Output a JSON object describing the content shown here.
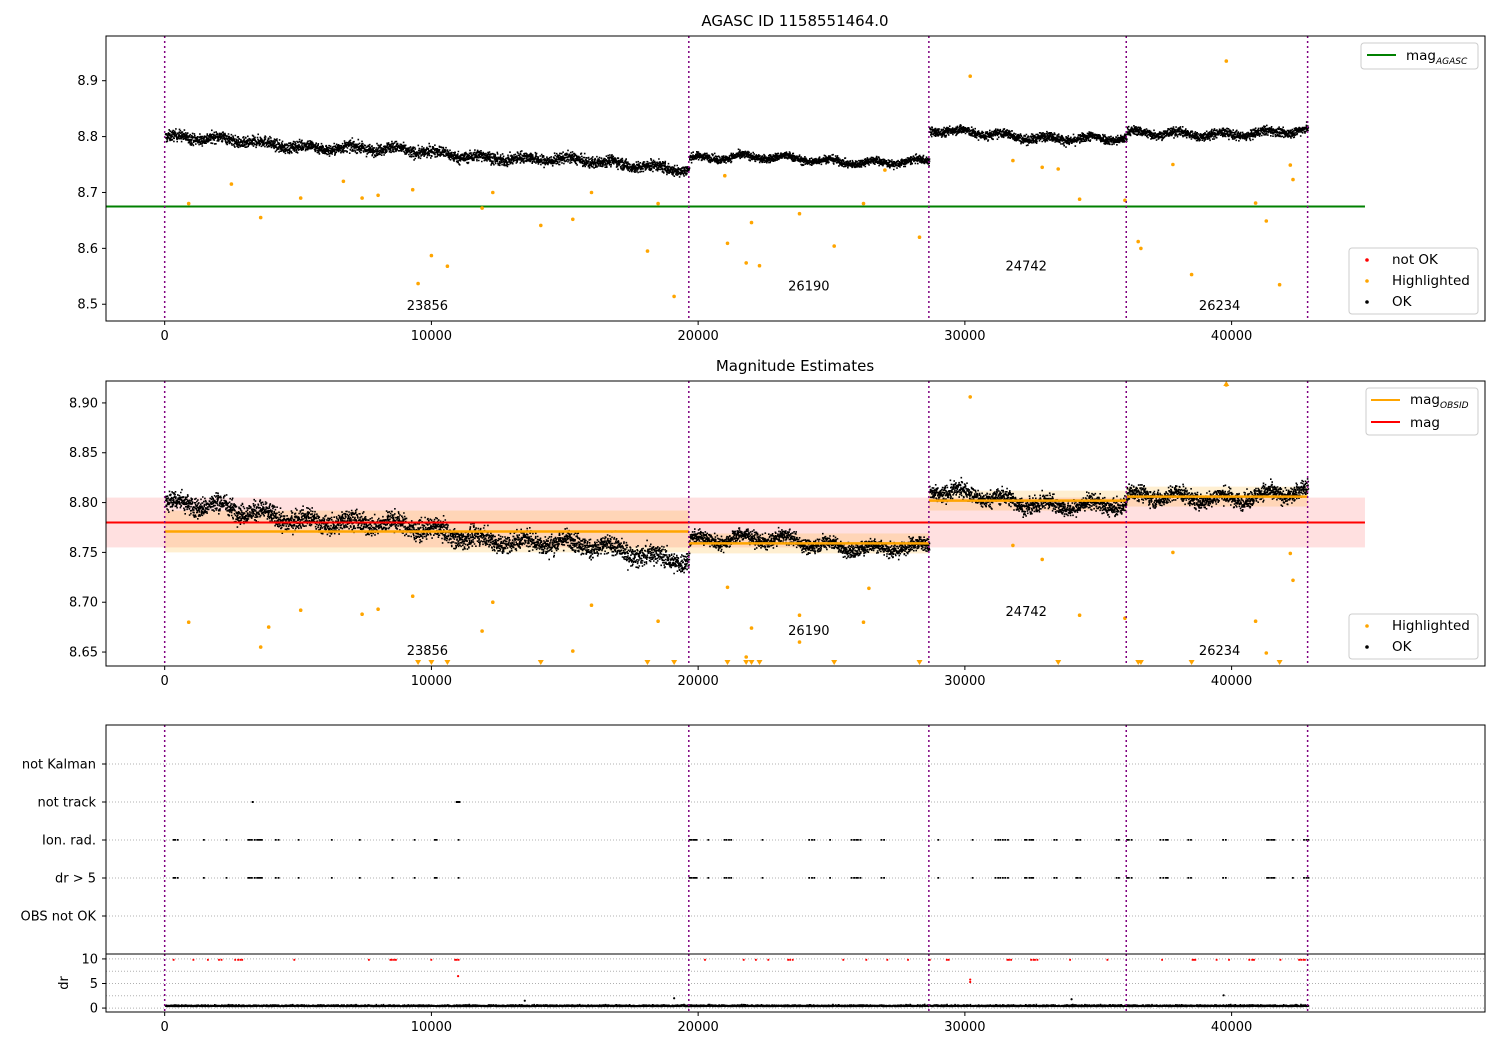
{
  "chart_data": [
    {
      "type": "scatter",
      "title": "AGASC ID 1158551464.0",
      "xlim": [
        -2200,
        49500
      ],
      "ylim": [
        8.47,
        8.98
      ],
      "xticks": [
        0,
        10000,
        20000,
        30000,
        40000
      ],
      "xtick_labels": [
        "0",
        "10000",
        "20000",
        "30000",
        "40000"
      ],
      "yticks": [
        8.5,
        8.6,
        8.7,
        8.8,
        8.9
      ],
      "ytick_labels": [
        "8.5",
        "8.6",
        "8.7",
        "8.8",
        "8.9"
      ],
      "obs_boundaries": [
        0,
        19650,
        28650,
        36050,
        42850
      ],
      "obsids": [
        {
          "label": "23856",
          "x": 9850,
          "y": 8.49
        },
        {
          "label": "26190",
          "x": 24150,
          "y": 8.525
        },
        {
          "label": "24742",
          "x": 32300,
          "y": 8.56
        },
        {
          "label": "26234",
          "x": 39550,
          "y": 8.49
        }
      ],
      "mag_agasc": {
        "value": 8.675,
        "x_range": [
          -2200,
          45000
        ],
        "color": "#008000"
      },
      "ok_segments": [
        {
          "x": [
            0,
            19650
          ],
          "y_start": 8.8,
          "y_end": 8.745,
          "spread": 0.017
        },
        {
          "x": [
            19650,
            28650
          ],
          "y_start": 8.765,
          "y_end": 8.755,
          "spread": 0.012
        },
        {
          "x": [
            28650,
            36050
          ],
          "y_start": 8.81,
          "y_end": 8.795,
          "spread": 0.014
        },
        {
          "x": [
            36050,
            42850
          ],
          "y_start": 8.805,
          "y_end": 8.81,
          "spread": 0.014
        }
      ],
      "highlighted_points": [
        [
          900,
          8.68
        ],
        [
          3600,
          8.655
        ],
        [
          5100,
          8.69
        ],
        [
          7400,
          8.69
        ],
        [
          8000,
          8.695
        ],
        [
          9300,
          8.705
        ],
        [
          9500,
          8.537
        ],
        [
          10000,
          8.587
        ],
        [
          10600,
          8.568
        ],
        [
          11900,
          8.672
        ],
        [
          12300,
          8.7
        ],
        [
          14100,
          8.641
        ],
        [
          15300,
          8.652
        ],
        [
          16000,
          8.7
        ],
        [
          18100,
          8.595
        ],
        [
          18500,
          8.68
        ],
        [
          19100,
          8.514
        ],
        [
          21100,
          8.609
        ],
        [
          21800,
          8.574
        ],
        [
          22000,
          8.646
        ],
        [
          22300,
          8.569
        ],
        [
          23800,
          8.662
        ],
        [
          25100,
          8.604
        ],
        [
          26200,
          8.68
        ],
        [
          28300,
          8.62
        ],
        [
          30200,
          8.908
        ],
        [
          32900,
          8.745
        ],
        [
          33500,
          8.742
        ],
        [
          34300,
          8.688
        ],
        [
          36000,
          8.686
        ],
        [
          36500,
          8.612
        ],
        [
          36600,
          8.6
        ],
        [
          38500,
          8.553
        ],
        [
          39800,
          8.935
        ],
        [
          40900,
          8.681
        ],
        [
          41300,
          8.649
        ],
        [
          41800,
          8.535
        ],
        [
          42300,
          8.723
        ],
        [
          42200,
          8.749
        ],
        [
          37800,
          8.75
        ],
        [
          31800,
          8.757
        ],
        [
          27000,
          8.74
        ],
        [
          21000,
          8.73
        ],
        [
          6700,
          8.72
        ],
        [
          2500,
          8.715
        ]
      ],
      "legend_upper": {
        "entries": [
          {
            "label": "mag_AGASC",
            "color": "#008000"
          }
        ],
        "placement": "upper right"
      },
      "legend_lower": {
        "entries": [
          {
            "label": "not OK",
            "color": "#ff0000"
          },
          {
            "label": "Highlighted",
            "color": "#ffa500"
          },
          {
            "label": "OK",
            "color": "#000000"
          }
        ],
        "placement": "lower right"
      }
    },
    {
      "type": "scatter",
      "title": "Magnitude Estimates",
      "xlim": [
        -2200,
        49500
      ],
      "ylim": [
        8.636,
        8.922
      ],
      "xticks": [
        0,
        10000,
        20000,
        30000,
        40000
      ],
      "xtick_labels": [
        "0",
        "10000",
        "20000",
        "30000",
        "40000"
      ],
      "yticks": [
        8.65,
        8.7,
        8.75,
        8.8,
        8.85,
        8.9
      ],
      "ytick_labels": [
        "8.65",
        "8.70",
        "8.75",
        "8.80",
        "8.85",
        "8.90"
      ],
      "obs_boundaries": [
        0,
        19650,
        28650,
        36050,
        42850
      ],
      "obsids": [
        {
          "label": "23856",
          "x": 9850,
          "y": 8.647
        },
        {
          "label": "26190",
          "x": 24150,
          "y": 8.667
        },
        {
          "label": "24742",
          "x": 32300,
          "y": 8.686
        },
        {
          "label": "26234",
          "x": 39550,
          "y": 8.647
        }
      ],
      "mag": {
        "value": 8.78,
        "band": [
          8.755,
          8.805
        ],
        "x_range": [
          -2200,
          45000
        ],
        "color": "#ff0000"
      },
      "mag_obsid": [
        {
          "x": [
            0,
            19650
          ],
          "value": 8.771,
          "band": [
            8.75,
            8.792
          ]
        },
        {
          "x": [
            19650,
            28650
          ],
          "value": 8.759,
          "band": [
            8.749,
            8.769
          ]
        },
        {
          "x": [
            28650,
            36050
          ],
          "value": 8.802,
          "band": [
            8.792,
            8.812
          ]
        },
        {
          "x": [
            36050,
            42850
          ],
          "value": 8.806,
          "band": [
            8.796,
            8.816
          ]
        }
      ],
      "ok_segments": [
        {
          "x": [
            0,
            19650
          ],
          "y_start": 8.8,
          "y_end": 8.745,
          "spread": 0.017
        },
        {
          "x": [
            19650,
            28650
          ],
          "y_start": 8.765,
          "y_end": 8.755,
          "spread": 0.012
        },
        {
          "x": [
            28650,
            36050
          ],
          "y_start": 8.81,
          "y_end": 8.795,
          "spread": 0.014
        },
        {
          "x": [
            36050,
            42850
          ],
          "y_start": 8.805,
          "y_end": 8.81,
          "spread": 0.014
        }
      ],
      "highlighted_points": [
        [
          900,
          8.68
        ],
        [
          3600,
          8.655
        ],
        [
          3900,
          8.675
        ],
        [
          5100,
          8.692
        ],
        [
          7400,
          8.688
        ],
        [
          8000,
          8.693
        ],
        [
          9300,
          8.706
        ],
        [
          11900,
          8.671
        ],
        [
          12300,
          8.7
        ],
        [
          15300,
          8.651
        ],
        [
          16000,
          8.697
        ],
        [
          18500,
          8.681
        ],
        [
          21100,
          8.715
        ],
        [
          22000,
          8.674
        ],
        [
          23800,
          8.687
        ],
        [
          23800,
          8.66
        ],
        [
          26200,
          8.68
        ],
        [
          26400,
          8.714
        ],
        [
          30200,
          8.906
        ],
        [
          32900,
          8.743
        ],
        [
          34300,
          8.687
        ],
        [
          36000,
          8.684
        ],
        [
          39800,
          8.918
        ],
        [
          40900,
          8.681
        ],
        [
          41300,
          8.649
        ],
        [
          42300,
          8.722
        ],
        [
          42200,
          8.749
        ],
        [
          37800,
          8.75
        ],
        [
          31800,
          8.757
        ],
        [
          21800,
          8.645
        ]
      ],
      "clipped_markers_x": [
        9500,
        10000,
        10600,
        14100,
        18100,
        19100,
        21100,
        21800,
        22000,
        22300,
        25100,
        28300,
        33500,
        36500,
        36600,
        38500,
        41800
      ],
      "legend_upper": {
        "entries": [
          {
            "label": "mag_OBSID",
            "color": "#ffa500"
          },
          {
            "label": "mag",
            "color": "#ff0000"
          }
        ],
        "placement": "upper right"
      },
      "legend_lower": {
        "entries": [
          {
            "label": "Highlighted",
            "color": "#ffa500"
          },
          {
            "label": "OK",
            "color": "#000000"
          }
        ],
        "placement": "lower right"
      }
    },
    {
      "type": "scatter",
      "title": "",
      "xlim": [
        -2200,
        49500
      ],
      "categories": [
        "not Kalman",
        "not track",
        "Ion. rad.",
        "dr > 5",
        "OBS not OK"
      ],
      "obs_boundaries": [
        0,
        19650,
        28650,
        36050,
        42850
      ],
      "not_track_points": [
        3300,
        10950,
        11000,
        11050
      ],
      "flag_ranges": [
        [
          300,
          11050
        ],
        [
          19650,
          28650
        ],
        [
          28650,
          36050
        ],
        [
          36050,
          42850
        ]
      ]
    },
    {
      "type": "scatter",
      "title": "",
      "ylabel": "dr",
      "xlim": [
        -2200,
        49500
      ],
      "ylim": [
        -0.8,
        11
      ],
      "yticks": [
        0,
        5,
        10
      ],
      "ytick_labels": [
        "0",
        "5",
        "10"
      ],
      "xticks": [
        0,
        10000,
        20000,
        30000,
        40000
      ],
      "xtick_labels": [
        "0",
        "10000",
        "20000",
        "30000",
        "40000"
      ],
      "obs_boundaries": [
        0,
        19650,
        28650,
        36050,
        42850
      ],
      "dr_ok_level": 0.5,
      "dr_flag_level": 9.8,
      "dr_extra_points": [
        [
          11000,
          6.5
        ],
        [
          30200,
          5.8
        ],
        [
          30200,
          5.3
        ],
        [
          39700,
          2.6
        ],
        [
          19100,
          2.0
        ],
        [
          34000,
          1.8
        ],
        [
          13500,
          1.5
        ]
      ]
    }
  ],
  "legend_labels": {
    "mag_agasc_base": "mag",
    "mag_agasc_sub": "AGASC",
    "mag_obsid_base": "mag",
    "mag_obsid_sub": "OBSID",
    "mag": "mag",
    "not_ok": "not OK",
    "highlighted": "Highlighted",
    "ok": "OK"
  }
}
